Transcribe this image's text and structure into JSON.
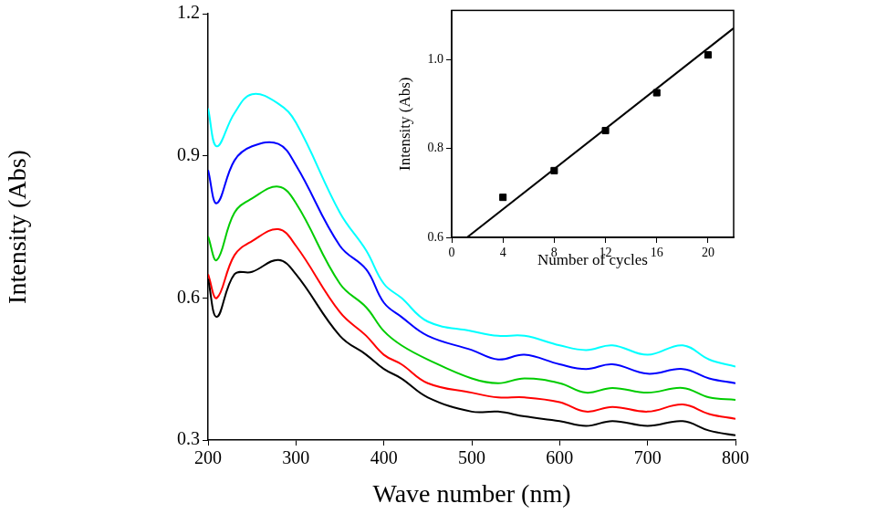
{
  "chart_data": [
    {
      "type": "line",
      "x_label": "Wave number (nm)",
      "y_label": "Intensity (Abs)",
      "x": [
        200,
        210,
        230,
        250,
        280,
        300,
        350,
        380,
        400,
        420,
        450,
        500,
        530,
        560,
        600,
        630,
        660,
        700,
        740,
        770,
        800
      ],
      "series": [
        {
          "color": "#000000",
          "values": [
            0.64,
            0.56,
            0.65,
            0.655,
            0.68,
            0.65,
            0.52,
            0.48,
            0.45,
            0.43,
            0.39,
            0.36,
            0.36,
            0.35,
            0.34,
            0.33,
            0.34,
            0.33,
            0.34,
            0.32,
            0.31
          ]
        },
        {
          "color": "#ff0000",
          "values": [
            0.65,
            0.6,
            0.69,
            0.72,
            0.745,
            0.71,
            0.57,
            0.52,
            0.48,
            0.46,
            0.42,
            0.4,
            0.39,
            0.39,
            0.38,
            0.36,
            0.37,
            0.36,
            0.375,
            0.355,
            0.345
          ]
        },
        {
          "color": "#00cc00",
          "values": [
            0.73,
            0.68,
            0.78,
            0.81,
            0.835,
            0.8,
            0.63,
            0.58,
            0.53,
            0.5,
            0.47,
            0.43,
            0.42,
            0.43,
            0.42,
            0.4,
            0.41,
            0.4,
            0.41,
            0.39,
            0.385
          ]
        },
        {
          "color": "#0000ff",
          "values": [
            0.87,
            0.8,
            0.89,
            0.92,
            0.925,
            0.88,
            0.71,
            0.66,
            0.59,
            0.56,
            0.52,
            0.49,
            0.47,
            0.48,
            0.46,
            0.45,
            0.46,
            0.44,
            0.45,
            0.43,
            0.42
          ]
        },
        {
          "color": "#00ffff",
          "values": [
            1.0,
            0.92,
            0.99,
            1.03,
            1.01,
            0.97,
            0.78,
            0.7,
            0.63,
            0.6,
            0.55,
            0.53,
            0.52,
            0.52,
            0.5,
            0.49,
            0.5,
            0.48,
            0.5,
            0.47,
            0.455
          ]
        }
      ],
      "xlim": [
        200,
        800
      ],
      "xticks": [
        200,
        300,
        400,
        500,
        600,
        700,
        800
      ],
      "ylim": [
        0.3,
        1.2
      ],
      "yticks": [
        0.3,
        0.6,
        0.9,
        1.2
      ],
      "grid": false
    },
    {
      "type": "scatter",
      "x_label": "Number of cycles",
      "y_label": "Intensity (Abs)",
      "series": [
        {
          "type": "scatter",
          "marker": "square",
          "color": "#000000",
          "x": [
            4,
            8,
            12,
            16,
            20
          ],
          "values": [
            0.69,
            0.75,
            0.84,
            0.925,
            1.01
          ]
        },
        {
          "type": "line",
          "line_style": "solid",
          "color": "#000000",
          "x": [
            1.2,
            22
          ],
          "values": [
            0.6,
            1.07
          ]
        }
      ],
      "xlim": [
        0,
        22
      ],
      "xticks": [
        0,
        4,
        8,
        12,
        16,
        20
      ],
      "ylim": [
        0.6,
        1.11
      ],
      "yticks": [
        0.6,
        0.8,
        {
          "value": 1.0,
          "label": "1.0"
        }
      ],
      "grid": false
    }
  ]
}
